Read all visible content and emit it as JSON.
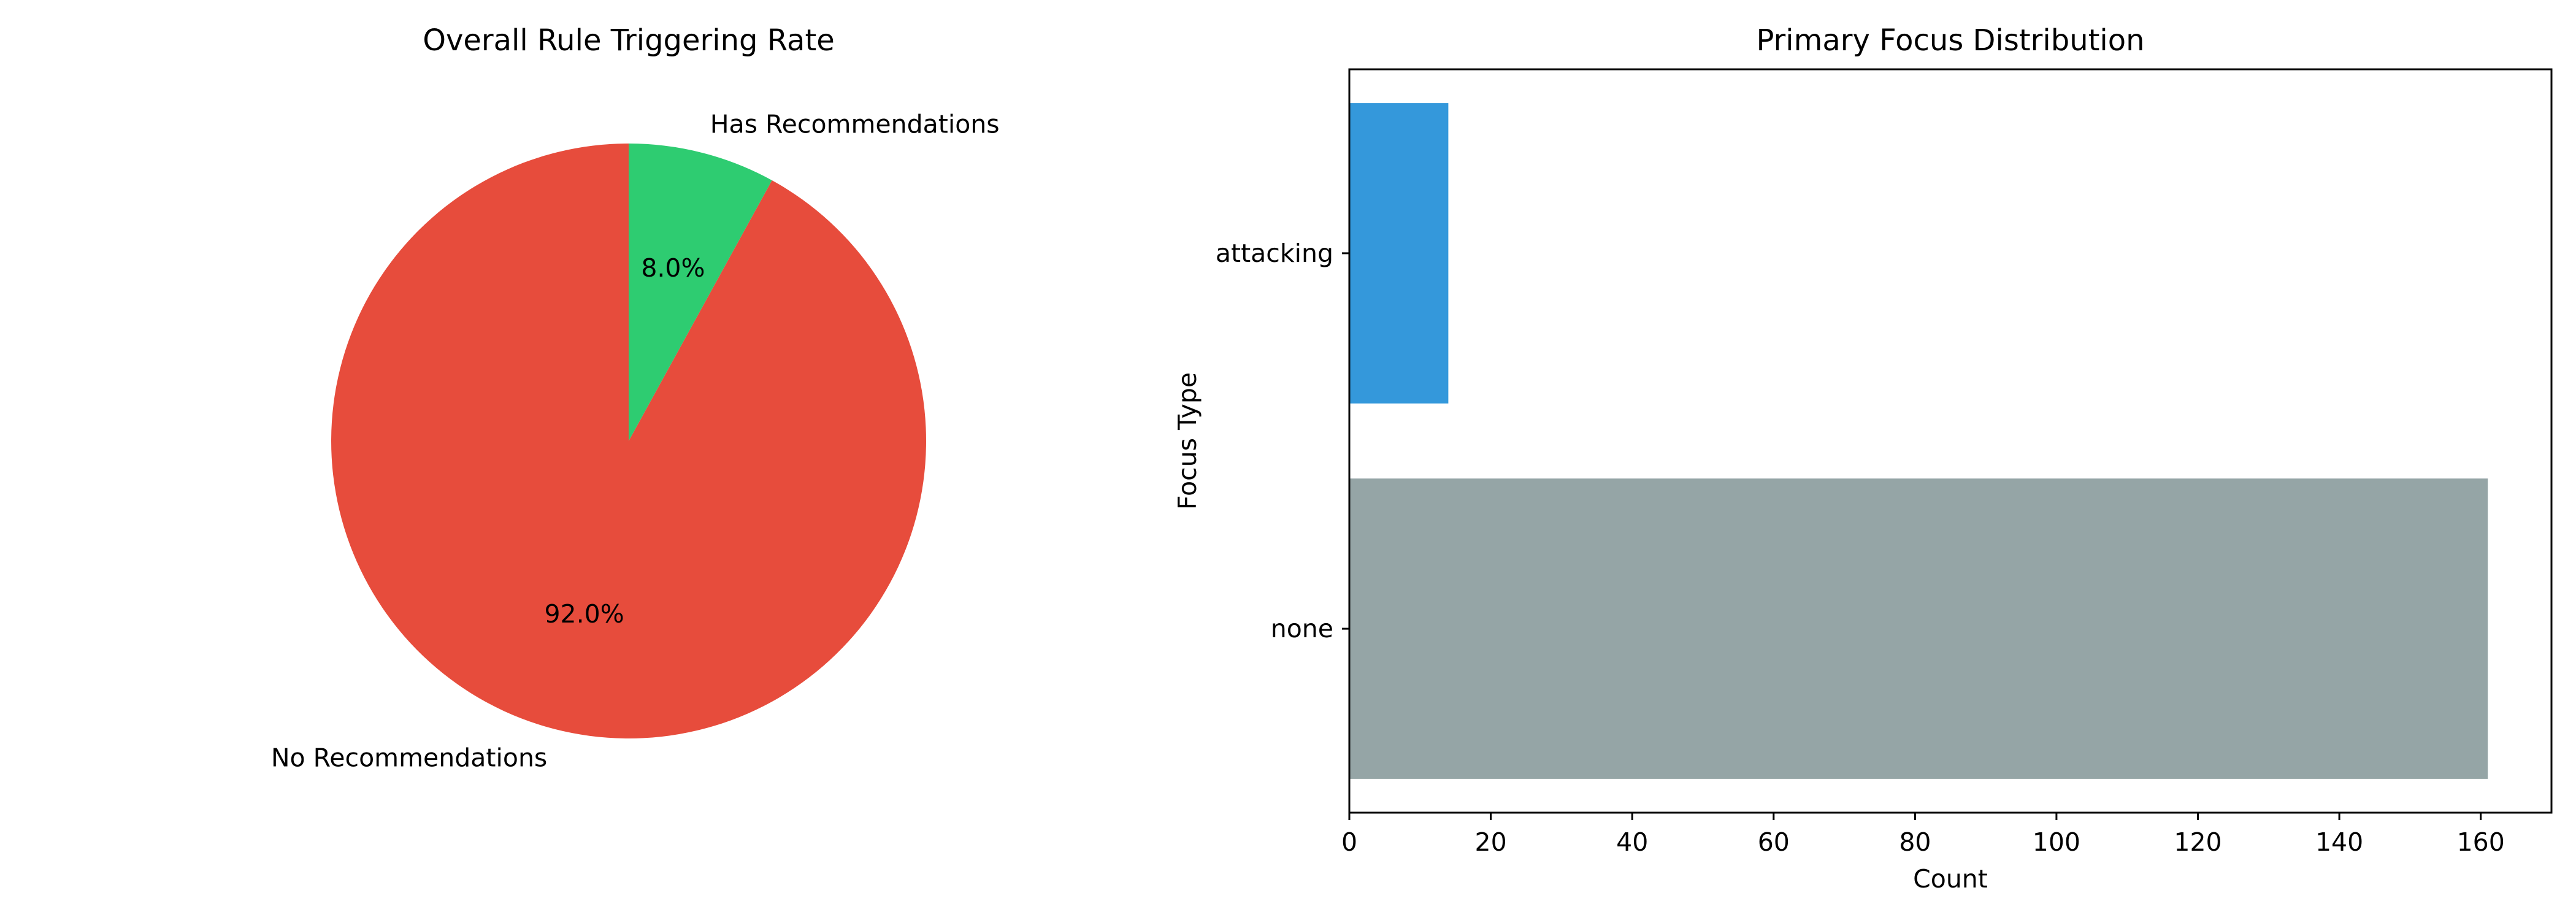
{
  "chart_data": [
    {
      "type": "pie",
      "title": "Overall Rule Triggering Rate",
      "start_angle_deg": 90,
      "direction": "counterclockwise",
      "slices": [
        {
          "label": "No Recommendations",
          "value": 92.0,
          "pct_label": "92.0%",
          "color": "#e74c3c"
        },
        {
          "label": "Has Recommendations",
          "value": 8.0,
          "pct_label": "8.0%",
          "color": "#2ecc71"
        }
      ]
    },
    {
      "type": "bar",
      "orientation": "horizontal",
      "title": "Primary Focus Distribution",
      "xlabel": "Count",
      "ylabel": "Focus Type",
      "xlim": [
        0,
        170
      ],
      "xticks": [
        0,
        20,
        40,
        60,
        80,
        100,
        120,
        140,
        160
      ],
      "grid": false,
      "categories": [
        "none",
        "attacking"
      ],
      "values": [
        161,
        14
      ],
      "colors": [
        "#95a5a6",
        "#3498db"
      ]
    }
  ]
}
